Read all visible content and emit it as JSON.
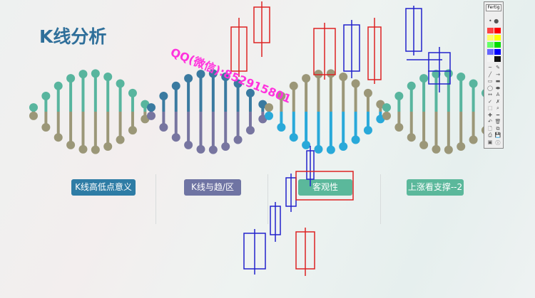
{
  "title": "K线分析",
  "watermark": "QQ(微信):852915801",
  "buttons": [
    {
      "label": "K线高低点意义",
      "color": "#2e7ca5"
    },
    {
      "label": "K线与趋/区",
      "color": "#6f74a3"
    },
    {
      "label": "客观性",
      "color": "#5bb89b"
    },
    {
      "label": "上涨看支撑--2",
      "color": "#5bb89b"
    }
  ],
  "helix_colors": [
    {
      "top": "#58b59e",
      "bottom": "#9b9778"
    },
    {
      "top": "#3a7aa0",
      "bottom": "#7775a0"
    },
    {
      "top": "#9b9778",
      "bottom": "#29a9d9"
    },
    {
      "top": "#58b59e",
      "bottom": "#9b9778"
    }
  ],
  "toolbar": {
    "header": "Fertig",
    "swatches": [
      "#ff4444",
      "#ff0000",
      "#ffff66",
      "#ffff00",
      "#66ff66",
      "#00dd00",
      "#6666ff",
      "#0000ff",
      "#f4f4f4",
      "#111111"
    ],
    "icons": [
      "line-icon",
      "pencil-icon",
      "slash-icon",
      "arrow-icon",
      "rect-icon",
      "filled-rect-icon",
      "ellipse-icon",
      "filled-ellipse-icon",
      "double-arrow-icon",
      "text-icon",
      "check-icon",
      "cross-icon",
      "select-icon",
      "zoom-icon",
      "plus-icon",
      "minus-icon",
      "undo-icon",
      "trash-icon",
      "new-page-icon",
      "copy-icon",
      "print-icon",
      "save-icon",
      "image-icon",
      "info-icon"
    ],
    "glyphs": [
      "~",
      "✎",
      "╱",
      "→",
      "▭",
      "▬",
      "◯",
      "⬬",
      "↔",
      "A",
      "✓",
      "✗",
      "⬚",
      "⌕",
      "✚",
      "━",
      "↶",
      "🗑",
      "🗋",
      "⧉",
      "⎙",
      "💾",
      "▣",
      "ⓘ"
    ]
  },
  "annotation_colors": {
    "red": "#dd2222",
    "blue": "#2222cc"
  }
}
